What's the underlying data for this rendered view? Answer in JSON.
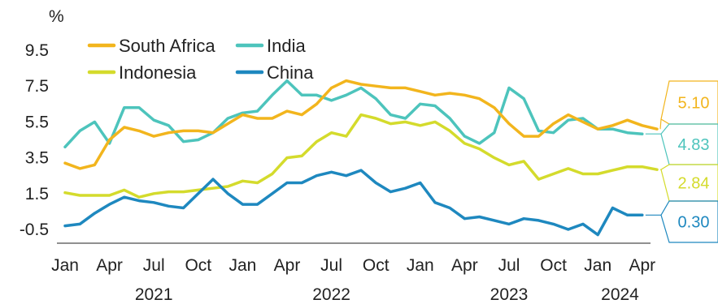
{
  "chart_data": {
    "type": "line",
    "ylabel": "%",
    "ylim": [
      -1.5,
      10.5
    ],
    "yticks": [
      "9.5",
      "7.5",
      "5.5",
      "3.5",
      "1.5",
      "-0.5"
    ],
    "ytick_values": [
      9.5,
      7.5,
      5.5,
      3.5,
      1.5,
      -0.5
    ],
    "x_tick_labels": [
      "Jan",
      "Apr",
      "Jul",
      "Oct",
      "Jan",
      "Apr",
      "Jul",
      "Oct",
      "Jan",
      "Apr",
      "Jul",
      "Oct",
      "Jan",
      "Apr"
    ],
    "x_tick_months": [
      0,
      3,
      6,
      9,
      12,
      15,
      18,
      21,
      24,
      27,
      30,
      33,
      36,
      39
    ],
    "year_labels": [
      "2021",
      "2022",
      "2023",
      "2024"
    ],
    "year_label_months": [
      6,
      18,
      30,
      37.5
    ],
    "x_start": "2021-01",
    "legend_position": "top-left",
    "grid": false,
    "series": [
      {
        "name": "South Africa",
        "color": "#F2B51D",
        "values": [
          3.2,
          2.9,
          3.1,
          4.5,
          5.2,
          5.0,
          4.7,
          4.9,
          5.0,
          5.0,
          4.9,
          5.4,
          5.9,
          5.7,
          5.7,
          6.1,
          5.9,
          6.5,
          7.4,
          7.8,
          7.6,
          7.5,
          7.4,
          7.4,
          7.2,
          7.0,
          7.1,
          7.0,
          6.8,
          6.3,
          5.4,
          4.7,
          4.7,
          5.4,
          5.9,
          5.5,
          5.1,
          5.3,
          5.6,
          5.3,
          5.1
        ]
      },
      {
        "name": "India",
        "color": "#4DC4BC",
        "values": [
          4.1,
          5.0,
          5.5,
          4.3,
          6.3,
          6.3,
          5.6,
          5.3,
          4.4,
          4.5,
          4.9,
          5.7,
          6.0,
          6.1,
          7.0,
          7.8,
          7.0,
          7.0,
          6.7,
          7.0,
          7.4,
          6.8,
          5.9,
          5.7,
          6.5,
          6.4,
          5.7,
          4.7,
          4.3,
          4.9,
          7.4,
          6.8,
          5.0,
          4.9,
          5.6,
          5.7,
          5.1,
          5.1,
          4.9,
          4.83
        ]
      },
      {
        "name": "Indonesia",
        "color": "#D4DB2C",
        "values": [
          1.55,
          1.4,
          1.4,
          1.4,
          1.7,
          1.3,
          1.5,
          1.6,
          1.6,
          1.7,
          1.8,
          1.9,
          2.2,
          2.1,
          2.6,
          3.5,
          3.6,
          4.4,
          4.9,
          4.7,
          5.9,
          5.7,
          5.4,
          5.5,
          5.3,
          5.5,
          5.0,
          4.3,
          4.0,
          3.5,
          3.1,
          3.3,
          2.3,
          2.6,
          2.9,
          2.6,
          2.6,
          2.8,
          3.0,
          3.0,
          2.84
        ]
      },
      {
        "name": "China",
        "color": "#1E88BF",
        "values": [
          -0.3,
          -0.2,
          0.4,
          0.9,
          1.3,
          1.1,
          1.0,
          0.8,
          0.7,
          1.5,
          2.3,
          1.5,
          0.9,
          0.9,
          1.5,
          2.1,
          2.1,
          2.5,
          2.7,
          2.5,
          2.8,
          2.1,
          1.6,
          1.8,
          2.1,
          1.0,
          0.7,
          0.1,
          0.2,
          0.0,
          -0.2,
          0.1,
          0.0,
          -0.2,
          -0.5,
          -0.2,
          -0.8,
          0.7,
          0.3,
          0.3
        ]
      }
    ],
    "latest_values": [
      {
        "label": "5.10",
        "color": "#F2B51D"
      },
      {
        "label": "4.83",
        "color": "#4DC4BC"
      },
      {
        "label": "2.84",
        "color": "#D4DB2C"
      },
      {
        "label": "0.30",
        "color": "#1E88BF"
      }
    ]
  }
}
